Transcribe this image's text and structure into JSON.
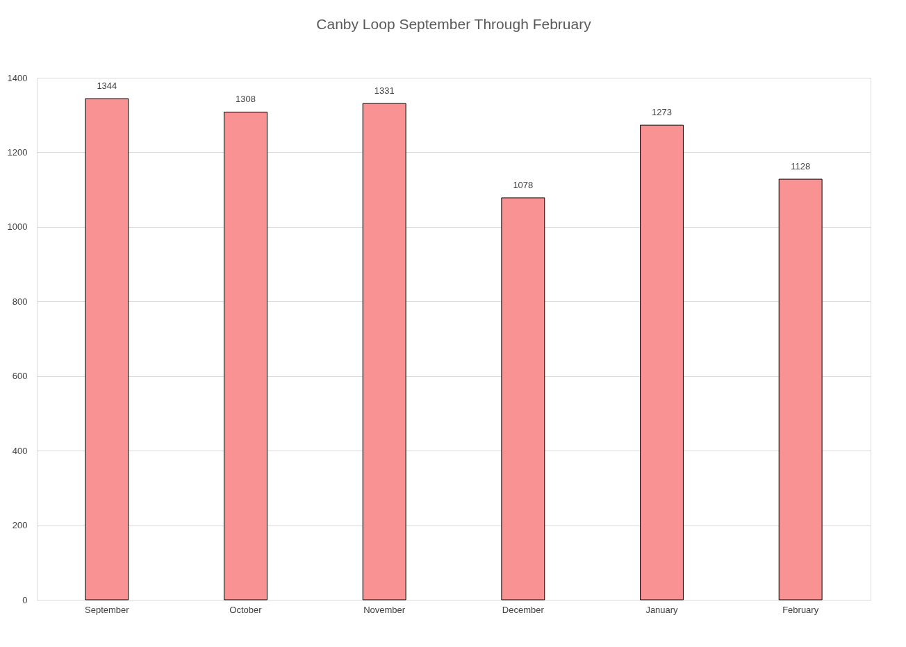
{
  "chart_data": {
    "type": "bar",
    "title": "Canby Loop September Through February",
    "categories": [
      "September",
      "October",
      "November",
      "December",
      "January",
      "February"
    ],
    "values": [
      1344,
      1308,
      1331,
      1078,
      1273,
      1128
    ],
    "color": "#f99393",
    "ylim": [
      0,
      1400
    ],
    "yticks": [
      0,
      200,
      400,
      600,
      800,
      1000,
      1200,
      1400
    ],
    "grid": "y",
    "data_labels": true
  }
}
